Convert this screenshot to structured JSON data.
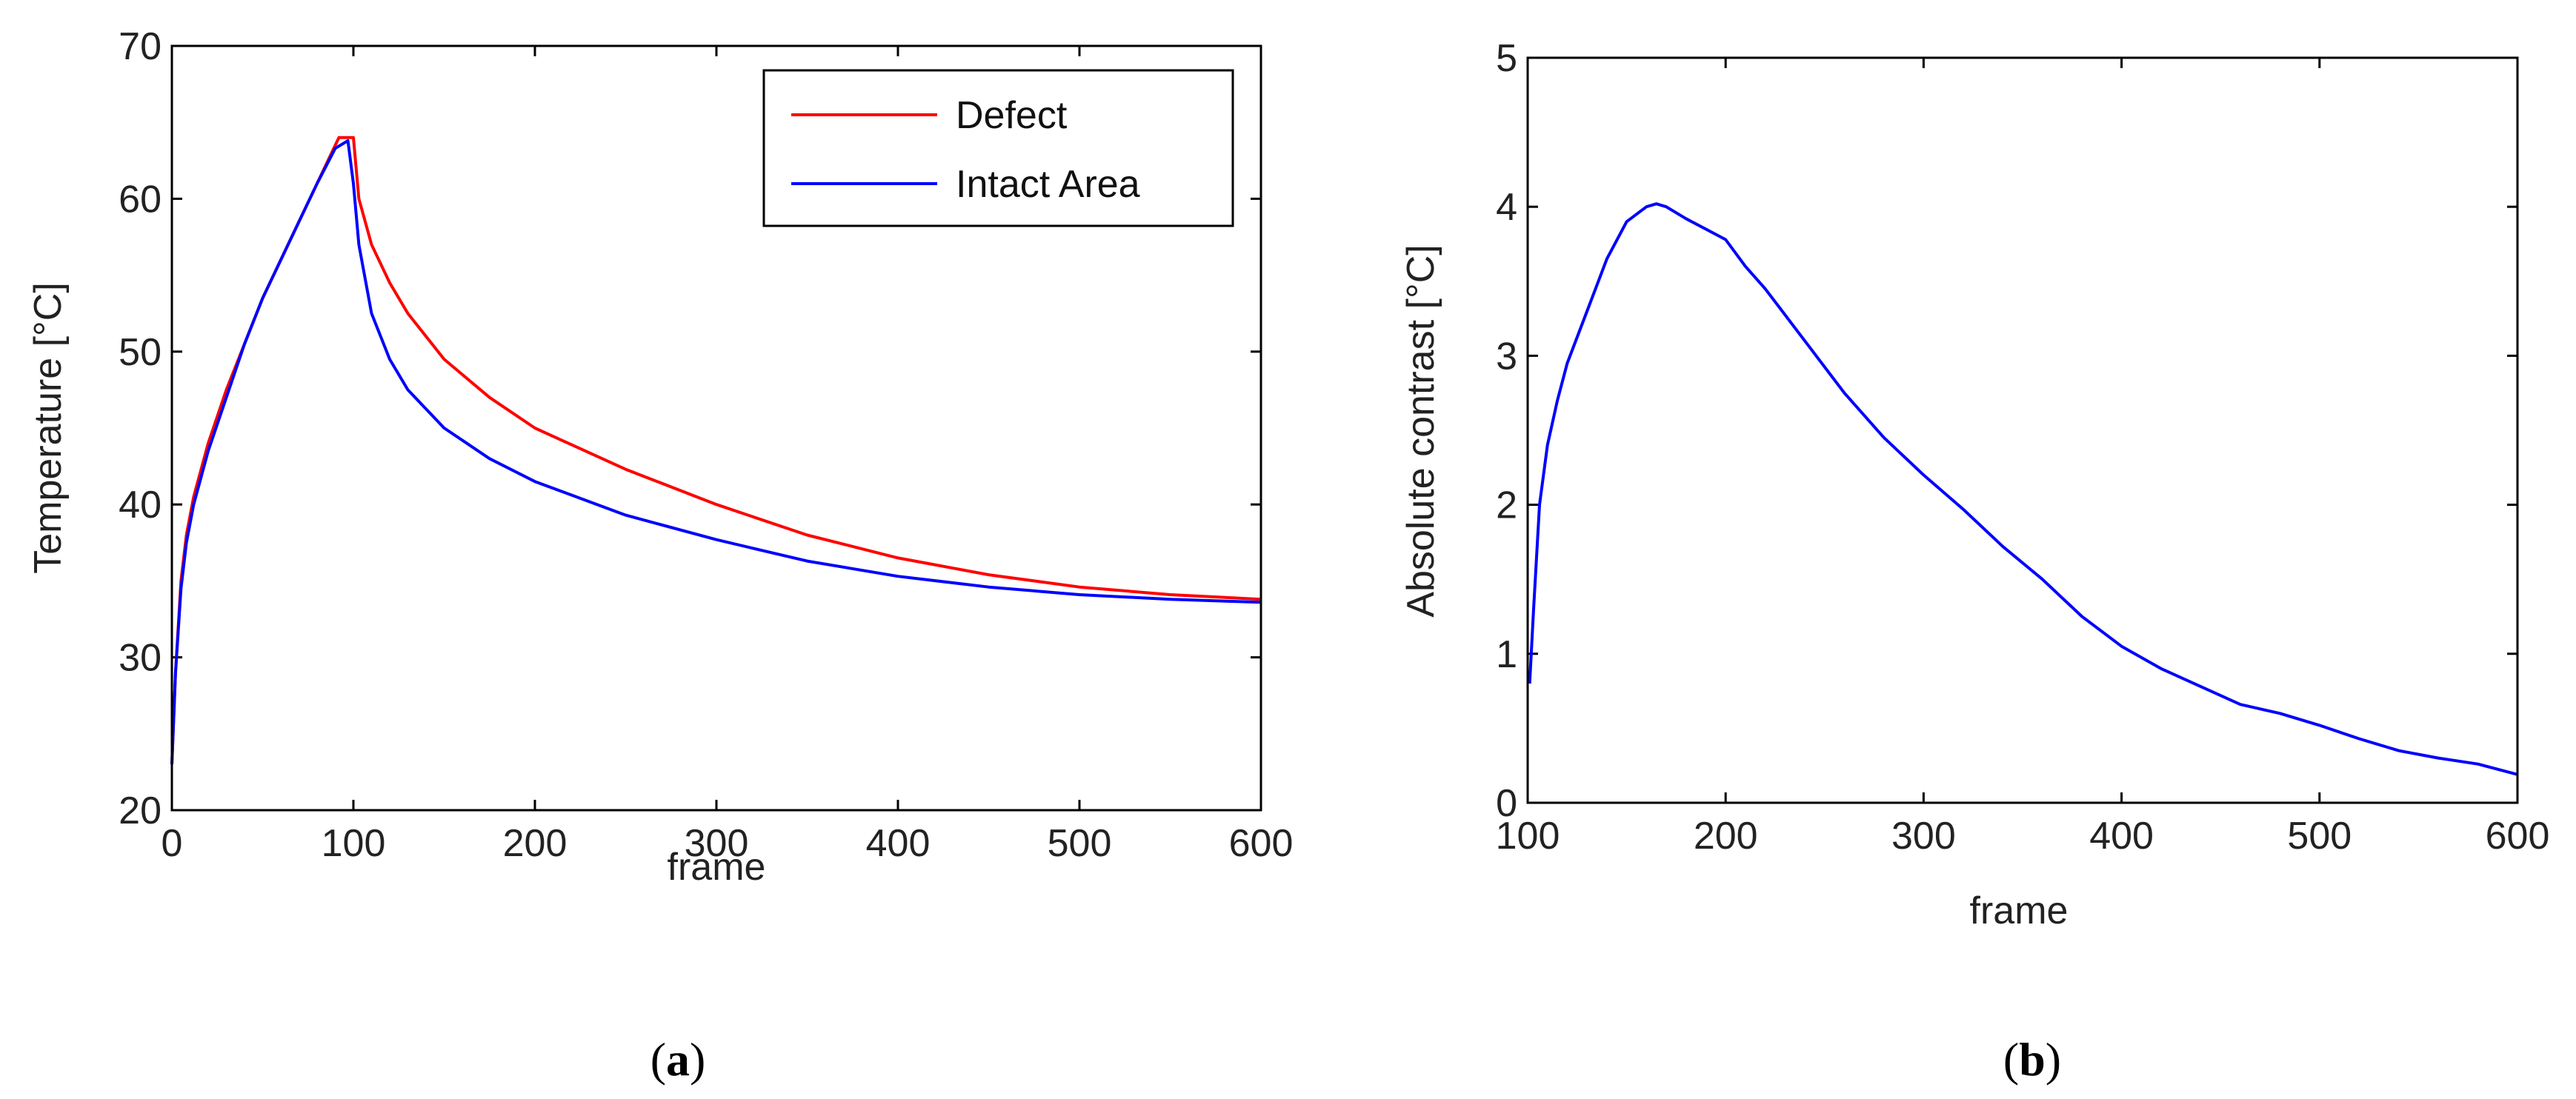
{
  "chart_data": [
    {
      "type": "line",
      "panel": "a",
      "panel_label_open": "(",
      "panel_letter": "a",
      "panel_label_close": ")",
      "xlabel": "frame",
      "ylabel": "Temperature [°C]",
      "xlim": [
        0,
        600
      ],
      "ylim": [
        20,
        70
      ],
      "xticks": [
        0,
        100,
        200,
        300,
        400,
        500,
        600
      ],
      "yticks": [
        20,
        30,
        40,
        50,
        60,
        70
      ],
      "legend_position": "top-right",
      "series": [
        {
          "name": "Defect",
          "color": "#ff0000",
          "x": [
            0,
            2,
            5,
            8,
            12,
            20,
            30,
            40,
            50,
            60,
            70,
            80,
            88,
            92,
            100,
            103,
            110,
            120,
            130,
            150,
            175,
            200,
            250,
            300,
            350,
            400,
            450,
            500,
            550,
            600
          ],
          "y": [
            23,
            29,
            35,
            38,
            40.5,
            44,
            47.5,
            50.5,
            53.5,
            56,
            58.5,
            61,
            63,
            64,
            64,
            60,
            57,
            54.5,
            52.5,
            49.5,
            47,
            45,
            42.3,
            40,
            38,
            36.5,
            35.4,
            34.6,
            34.1,
            33.8
          ]
        },
        {
          "name": "Intact Area",
          "color": "#0000ff",
          "x": [
            0,
            2,
            5,
            8,
            12,
            20,
            30,
            40,
            50,
            60,
            70,
            80,
            90,
            97,
            100,
            103,
            110,
            120,
            130,
            150,
            175,
            200,
            250,
            300,
            350,
            400,
            450,
            500,
            550,
            600
          ],
          "y": [
            23,
            29,
            34.5,
            37.5,
            40,
            43.5,
            47,
            50.5,
            53.5,
            56,
            58.5,
            61,
            63.3,
            63.8,
            61,
            57,
            52.5,
            49.5,
            47.5,
            45,
            43,
            41.5,
            39.3,
            37.7,
            36.3,
            35.3,
            34.6,
            34.1,
            33.8,
            33.6
          ]
        }
      ]
    },
    {
      "type": "line",
      "panel": "b",
      "panel_label_open": "(",
      "panel_letter": "b",
      "panel_label_close": ")",
      "xlabel": "frame",
      "ylabel": "Absolute contrast [°C]",
      "xlim": [
        100,
        600
      ],
      "ylim": [
        0,
        5
      ],
      "xticks": [
        100,
        200,
        300,
        400,
        500,
        600
      ],
      "yticks": [
        0,
        1,
        2,
        3,
        4,
        5
      ],
      "series": [
        {
          "name": "Absolute contrast",
          "color": "#0000ff",
          "x": [
            101,
            103,
            106,
            110,
            115,
            120,
            130,
            140,
            150,
            160,
            165,
            170,
            180,
            190,
            200,
            210,
            220,
            240,
            260,
            280,
            300,
            320,
            340,
            360,
            380,
            400,
            420,
            440,
            460,
            480,
            500,
            520,
            540,
            560,
            580,
            600
          ],
          "y": [
            0.8,
            1.3,
            2.0,
            2.4,
            2.7,
            2.95,
            3.3,
            3.65,
            3.9,
            4.0,
            4.02,
            4.0,
            3.92,
            3.85,
            3.78,
            3.6,
            3.45,
            3.1,
            2.75,
            2.45,
            2.2,
            1.97,
            1.72,
            1.5,
            1.25,
            1.05,
            0.9,
            0.78,
            0.66,
            0.6,
            0.52,
            0.43,
            0.35,
            0.3,
            0.26,
            0.19
          ]
        }
      ]
    }
  ]
}
